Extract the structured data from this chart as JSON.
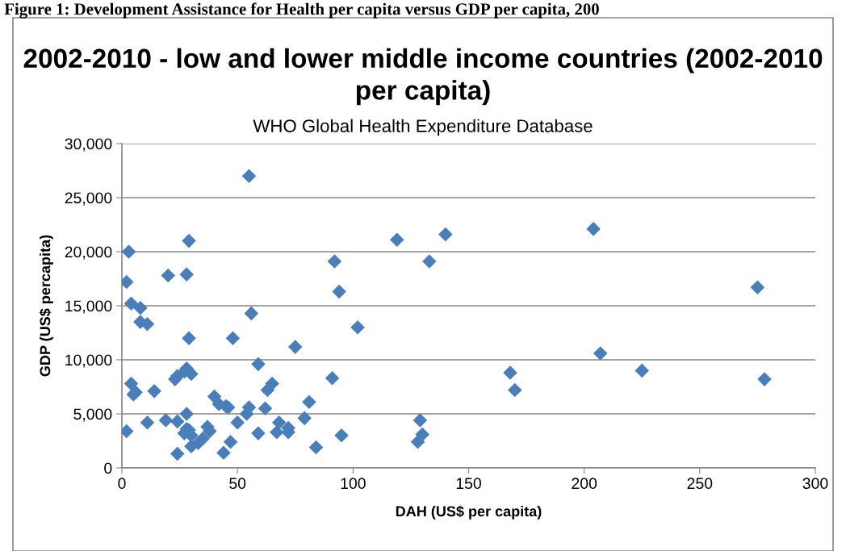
{
  "chart_data": {
    "type": "scatter",
    "title": "2002-2010 - low and lower middle income countries (2002-2010 per capita)",
    "subtitle": "WHO Global Health Expenditure Database",
    "xlabel": "DAH (US$ per capita)",
    "ylabel": "GDP (US$ percapita)",
    "annotations": [
      "Figure 1: Development Assistance for Health per capita versus GDP per capita, 200"
    ],
    "x": [
      55,
      3,
      2,
      4,
      8,
      8,
      11,
      20,
      28,
      29,
      29,
      48,
      56,
      59,
      75,
      92,
      94,
      102,
      119,
      133,
      140,
      204,
      207,
      225,
      275,
      278,
      168,
      170,
      91,
      129,
      130,
      128,
      95,
      84,
      81,
      79,
      72,
      72,
      68,
      67,
      65,
      63,
      62,
      59,
      55,
      54,
      50,
      47,
      46,
      45,
      44,
      42,
      40,
      37,
      38,
      35,
      33,
      30,
      30,
      29,
      27,
      28,
      28,
      24,
      24,
      19,
      11,
      2,
      4,
      5,
      6,
      14,
      23,
      24,
      27,
      28,
      30
    ],
    "series": [
      {
        "color": "#4a7ebb",
        "values": [
          27000,
          20000,
          17200,
          15200,
          14800,
          13500,
          13300,
          17800,
          17900,
          21000,
          12000,
          12000,
          14300,
          9600,
          11200,
          19100,
          16300,
          13000,
          21100,
          19100,
          21600,
          22100,
          10600,
          9000,
          16700,
          8200,
          8800,
          7200,
          8300,
          4400,
          3100,
          2400,
          3000,
          1900,
          6100,
          4600,
          3700,
          3300,
          4200,
          3300,
          7800,
          7200,
          5500,
          3200,
          5600,
          5000,
          4200,
          2400,
          5600,
          5700,
          1400,
          5900,
          6600,
          3800,
          3400,
          2700,
          2300,
          2000,
          3000,
          3500,
          3200,
          5000,
          3600,
          1300,
          4300,
          4400,
          4200,
          3400,
          7800,
          6800,
          7000,
          7100,
          8200,
          8500,
          8900,
          9200,
          8700
        ]
      }
    ],
    "xlim": [
      0,
      300
    ],
    "xticks": [
      0,
      50,
      100,
      150,
      200,
      250,
      300
    ],
    "ylim": [
      0,
      30000
    ],
    "yticks": [
      {
        "value": 0,
        "label": "0"
      },
      {
        "value": 5000,
        "label": "5,000"
      },
      {
        "value": 10000,
        "label": "10,000"
      },
      {
        "value": 15000,
        "label": "15,000"
      },
      {
        "value": 20000,
        "label": "20,000"
      },
      {
        "value": 25000,
        "label": "25,000"
      },
      {
        "value": 30000,
        "label": "30,000"
      }
    ],
    "grid": "y",
    "marker": "diamond",
    "legend": false
  }
}
